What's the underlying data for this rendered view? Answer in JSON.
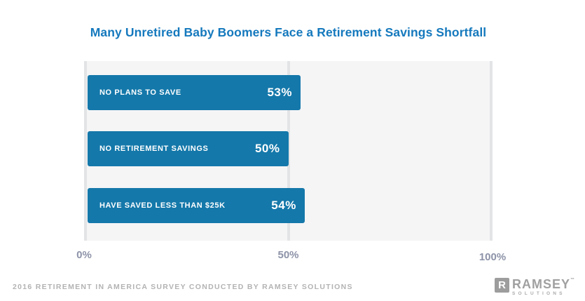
{
  "chart_data": {
    "type": "bar",
    "orientation": "horizontal",
    "title": "Many Unretired Baby Boomers Face a Retirement Savings Shortfall",
    "categories": [
      "NO PLANS TO SAVE",
      "NO RETIREMENT SAVINGS",
      "HAVE SAVED LESS THAN $25K"
    ],
    "values": [
      53,
      50,
      54
    ],
    "value_labels": [
      "53%",
      "50%",
      "54%"
    ],
    "xlabel": "",
    "ylabel": "",
    "xlim": [
      0,
      100
    ],
    "tick_labels": [
      "0%",
      "50%",
      "100%"
    ],
    "grid": true,
    "legend": false,
    "bar_color": "#1478aa",
    "plot_background": "#f5f5f6",
    "title_color": "#1579bd",
    "tick_color": "#8d93a8"
  },
  "footer": {
    "source": "2016 RETIREMENT IN AMERICA SURVEY CONDUCTED BY RAMSEY SOLUTIONS"
  },
  "logo": {
    "mark": "R",
    "name": "RAMSEY",
    "tm": "™",
    "sub": "SOLUTIONS"
  }
}
